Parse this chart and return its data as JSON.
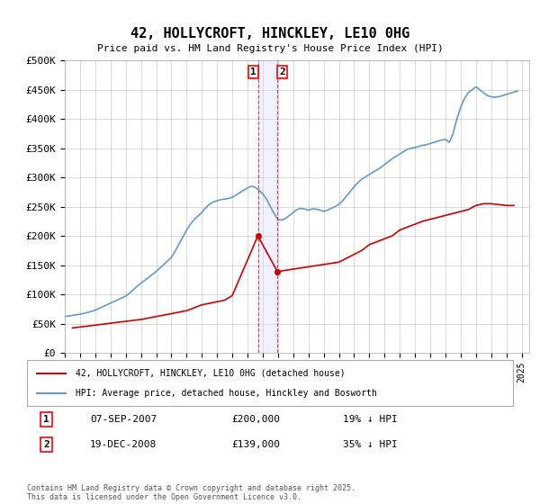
{
  "title": "42, HOLLYCROFT, HINCKLEY, LE10 0HG",
  "subtitle": "Price paid vs. HM Land Registry's House Price Index (HPI)",
  "ylabel_ticks": [
    "£0",
    "£50K",
    "£100K",
    "£150K",
    "£200K",
    "£250K",
    "£300K",
    "£350K",
    "£400K",
    "£450K",
    "£500K"
  ],
  "ytick_values": [
    0,
    50000,
    100000,
    150000,
    200000,
    250000,
    300000,
    350000,
    400000,
    450000,
    500000
  ],
  "ylim": [
    0,
    500000
  ],
  "xlim_start": 1995,
  "xlim_end": 2025.5,
  "hpi_color": "#6699cc",
  "price_color": "#cc0000",
  "dashed_line_color": "#cc0000",
  "dashed_line_alpha": 0.5,
  "background_color": "#ffffff",
  "grid_color": "#cccccc",
  "legend_entries": [
    "42, HOLLYCROFT, HINCKLEY, LE10 0HG (detached house)",
    "HPI: Average price, detached house, Hinckley and Bosworth"
  ],
  "transaction1_date": "07-SEP-2007",
  "transaction1_price": "£200,000",
  "transaction1_hpi": "19% ↓ HPI",
  "transaction1_x": 2007.68,
  "transaction1_y": 200000,
  "transaction2_date": "19-DEC-2008",
  "transaction2_price": "£139,000",
  "transaction2_hpi": "35% ↓ HPI",
  "transaction2_x": 2008.96,
  "transaction2_y": 139000,
  "footer_text": "Contains HM Land Registry data © Crown copyright and database right 2025.\nThis data is licensed under the Open Government Licence v3.0.",
  "hpi_data": {
    "years": [
      1995.0,
      1995.25,
      1995.5,
      1995.75,
      1996.0,
      1996.25,
      1996.5,
      1996.75,
      1997.0,
      1997.25,
      1997.5,
      1997.75,
      1998.0,
      1998.25,
      1998.5,
      1998.75,
      1999.0,
      1999.25,
      1999.5,
      1999.75,
      2000.0,
      2000.25,
      2000.5,
      2000.75,
      2001.0,
      2001.25,
      2001.5,
      2001.75,
      2002.0,
      2002.25,
      2002.5,
      2002.75,
      2003.0,
      2003.25,
      2003.5,
      2003.75,
      2004.0,
      2004.25,
      2004.5,
      2004.75,
      2005.0,
      2005.25,
      2005.5,
      2005.75,
      2006.0,
      2006.25,
      2006.5,
      2006.75,
      2007.0,
      2007.25,
      2007.5,
      2007.75,
      2008.0,
      2008.25,
      2008.5,
      2008.75,
      2009.0,
      2009.25,
      2009.5,
      2009.75,
      2010.0,
      2010.25,
      2010.5,
      2010.75,
      2011.0,
      2011.25,
      2011.5,
      2011.75,
      2012.0,
      2012.25,
      2012.5,
      2012.75,
      2013.0,
      2013.25,
      2013.5,
      2013.75,
      2014.0,
      2014.25,
      2014.5,
      2014.75,
      2015.0,
      2015.25,
      2015.5,
      2015.75,
      2016.0,
      2016.25,
      2016.5,
      2016.75,
      2017.0,
      2017.25,
      2017.5,
      2017.75,
      2018.0,
      2018.25,
      2018.5,
      2018.75,
      2019.0,
      2019.25,
      2019.5,
      2019.75,
      2020.0,
      2020.25,
      2020.5,
      2020.75,
      2021.0,
      2021.25,
      2021.5,
      2021.75,
      2022.0,
      2022.25,
      2022.5,
      2022.75,
      2023.0,
      2023.25,
      2023.5,
      2023.75,
      2024.0,
      2024.25,
      2024.5,
      2024.75
    ],
    "values": [
      62000,
      63000,
      64000,
      65000,
      66000,
      67500,
      69000,
      71000,
      73000,
      76000,
      79000,
      82000,
      85000,
      88000,
      91000,
      94000,
      97000,
      102000,
      108000,
      114000,
      119000,
      124000,
      129000,
      134000,
      139000,
      145000,
      151000,
      157000,
      163000,
      174000,
      186000,
      198000,
      210000,
      220000,
      228000,
      234000,
      240000,
      248000,
      254000,
      258000,
      260000,
      262000,
      263000,
      264000,
      266000,
      270000,
      274000,
      278000,
      282000,
      285000,
      283000,
      278000,
      272000,
      263000,
      250000,
      238000,
      228000,
      227000,
      230000,
      235000,
      240000,
      245000,
      247000,
      246000,
      244000,
      246000,
      246000,
      244000,
      242000,
      244000,
      247000,
      250000,
      254000,
      260000,
      268000,
      276000,
      284000,
      291000,
      297000,
      301000,
      305000,
      309000,
      313000,
      317000,
      322000,
      327000,
      332000,
      336000,
      340000,
      344000,
      348000,
      350000,
      351000,
      353000,
      355000,
      356000,
      358000,
      360000,
      362000,
      364000,
      365000,
      360000,
      375000,
      400000,
      420000,
      435000,
      445000,
      450000,
      455000,
      450000,
      445000,
      440000,
      438000,
      437000,
      438000,
      440000,
      442000,
      444000,
      446000,
      448000
    ]
  },
  "price_data": {
    "years": [
      1995.5,
      2000.0,
      2001.0,
      2003.0,
      2004.0,
      2005.5,
      2006.0,
      2007.68,
      2008.96,
      2013.0,
      2014.5,
      2015.0,
      2016.5,
      2017.0,
      2018.5,
      2020.0,
      2021.5,
      2022.0,
      2022.5,
      2023.0,
      2024.0,
      2024.5
    ],
    "values": [
      42500,
      57000,
      62000,
      72000,
      82000,
      90000,
      98000,
      200000,
      139000,
      155000,
      175000,
      185000,
      200000,
      210000,
      225000,
      235000,
      245000,
      252000,
      255000,
      255000,
      252000,
      252000
    ]
  }
}
